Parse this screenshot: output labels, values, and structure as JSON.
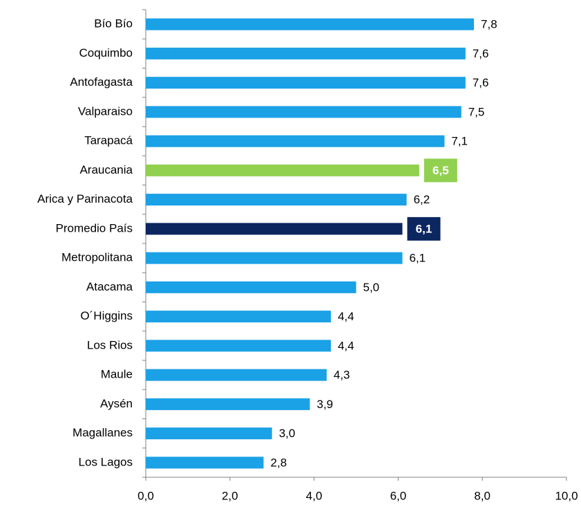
{
  "chart_data": {
    "type": "bar",
    "orientation": "horizontal",
    "categories": [
      "Bío Bío",
      "Coquimbo",
      "Antofagasta",
      "Valparaiso",
      "Tarapacá",
      "Araucania",
      "Arica y Parinacota",
      "Promedio País",
      "Metropolitana",
      "Atacama",
      "O´Higgins",
      "Los Rios",
      "Maule",
      "Aysén",
      "Magallanes",
      "Los Lagos"
    ],
    "values": [
      7.8,
      7.6,
      7.6,
      7.5,
      7.1,
      6.5,
      6.2,
      6.1,
      6.1,
      5.0,
      4.4,
      4.4,
      4.3,
      3.9,
      3.0,
      2.8
    ],
    "value_labels": [
      "7,8",
      "7,6",
      "7,6",
      "7,5",
      "7,1",
      "6,5",
      "6,2",
      "6,1",
      "6,1",
      "5,0",
      "4,4",
      "4,4",
      "4,3",
      "3,9",
      "3,0",
      "2,8"
    ],
    "color": "#1ba1e6",
    "colors": [
      "#1ba1e6",
      "#1ba1e6",
      "#1ba1e6",
      "#1ba1e6",
      "#1ba1e6",
      "#92d050",
      "#1ba1e6",
      "#0c2660",
      "#1ba1e6",
      "#1ba1e6",
      "#1ba1e6",
      "#1ba1e6",
      "#1ba1e6",
      "#1ba1e6",
      "#1ba1e6",
      "#1ba1e6"
    ],
    "xlim": [
      0,
      10
    ],
    "xticks": [
      {
        "value": 0,
        "label": "0,0"
      },
      {
        "value": 2,
        "label": "2,0"
      },
      {
        "value": 4,
        "label": "4,0"
      },
      {
        "value": 6,
        "label": "6,0"
      },
      {
        "value": 8,
        "label": "8,0"
      },
      {
        "value": 10,
        "label": "10,0"
      }
    ],
    "grid": false
  }
}
